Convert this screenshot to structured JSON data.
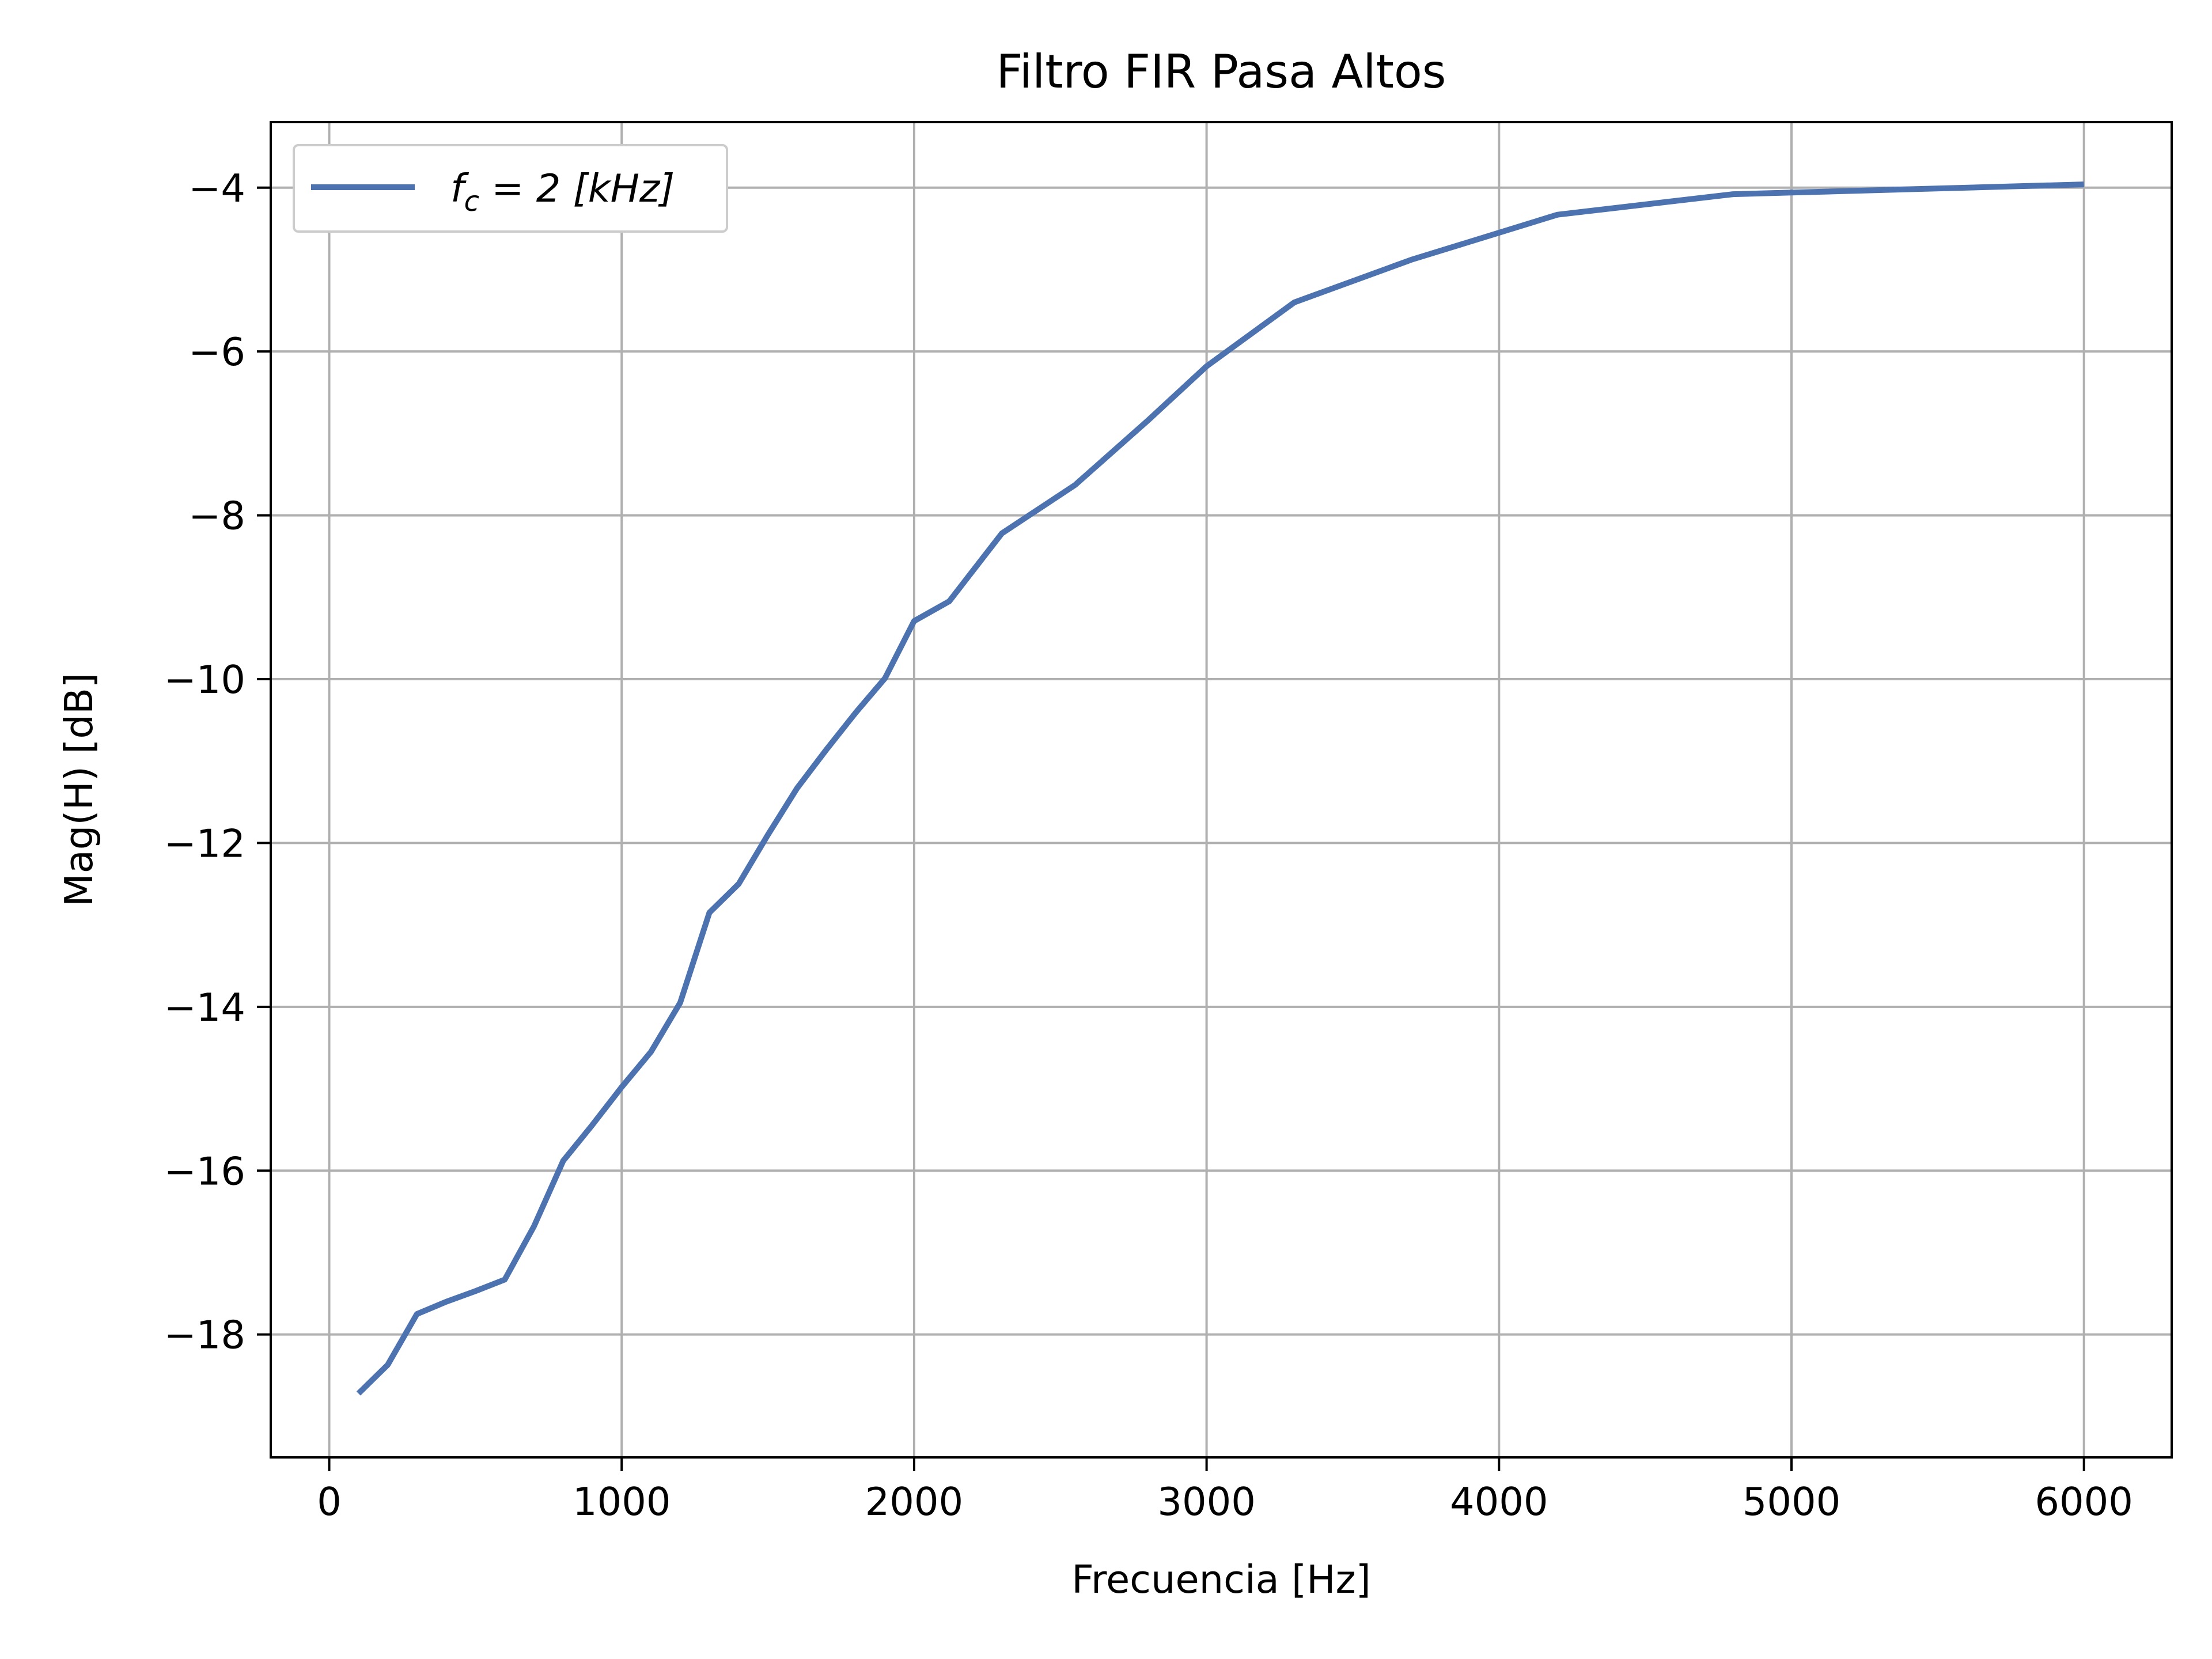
{
  "chart_data": {
    "type": "line",
    "title": "Filtro FIR Pasa Altos",
    "xlabel": "Frecuencia [Hz]",
    "ylabel": "Mag(H) [dB]",
    "xlim": [
      -200,
      6300
    ],
    "ylim": [
      -19.5,
      -3.2
    ],
    "grid": true,
    "legend_position": "top-left",
    "xticks": [
      0,
      1000,
      2000,
      3000,
      4000,
      5000,
      6000
    ],
    "xtick_labels": [
      "0",
      "1000",
      "2000",
      "3000",
      "4000",
      "5000",
      "6000"
    ],
    "yticks": [
      -4,
      -6,
      -8,
      -10,
      -12,
      -14,
      -16,
      -18
    ],
    "ytick_labels": [
      "−4",
      "−6",
      "−8",
      "−10",
      "−12",
      "−14",
      "−16",
      "−18"
    ],
    "series": [
      {
        "name": "f_c = 2 [kHz]",
        "color": "#4c72b0",
        "x": [
          100,
          200,
          300,
          400,
          500,
          600,
          700,
          800,
          900,
          1000,
          1100,
          1200,
          1300,
          1400,
          1500,
          1600,
          1700,
          1800,
          1900,
          2000,
          2120,
          2300,
          2550,
          2800,
          3000,
          3300,
          3700,
          4200,
          4800,
          5000,
          6000
        ],
        "y": [
          -18.72,
          -18.37,
          -17.75,
          -17.6,
          -17.47,
          -17.33,
          -16.68,
          -15.88,
          -15.44,
          -14.98,
          -14.55,
          -13.95,
          -12.85,
          -12.5,
          -11.9,
          -11.33,
          -10.86,
          -10.41,
          -9.99,
          -9.29,
          -9.05,
          -8.22,
          -7.63,
          -6.84,
          -6.18,
          -5.4,
          -4.88,
          -4.33,
          -4.08,
          -4.06,
          -3.96
        ]
      }
    ]
  },
  "legend": {
    "label_main": "f",
    "label_sub": "c",
    "label_rest": " = 2 [kHz]"
  }
}
